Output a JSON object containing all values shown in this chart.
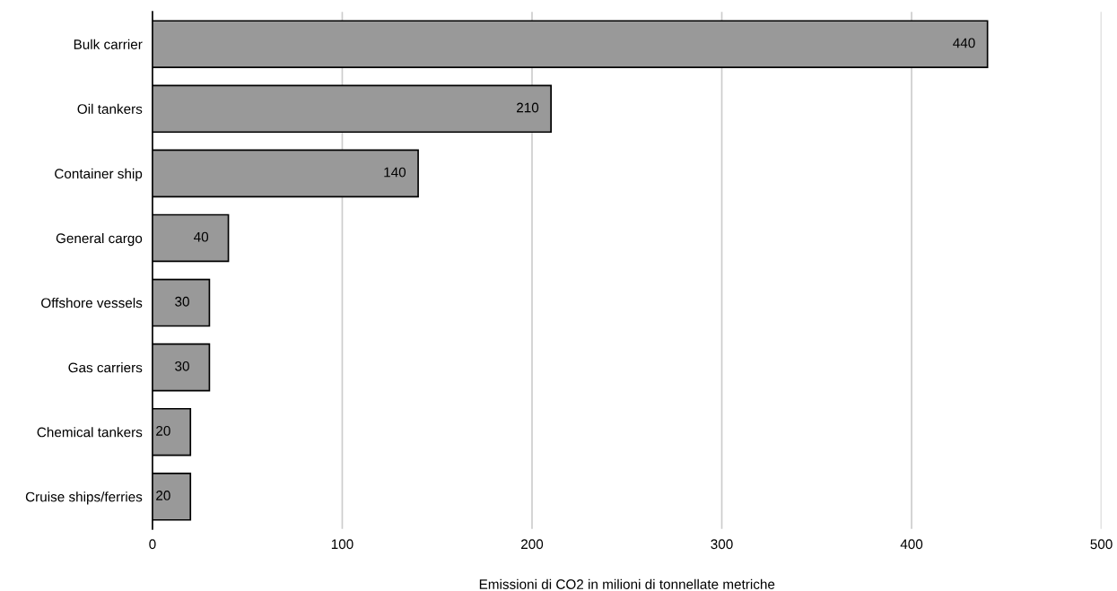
{
  "chart_data": {
    "type": "bar",
    "orientation": "horizontal",
    "xlabel": "Emissioni di CO2 in milioni di tonnellate metriche",
    "categories": [
      "Bulk carrier",
      "Oil tankers",
      "Container ship",
      "General cargo",
      "Offshore vessels",
      "Gas carriers",
      "Chemical tankers",
      "Cruise ships/ferries"
    ],
    "values": [
      440,
      210,
      140,
      40,
      30,
      30,
      20,
      20
    ],
    "color": "#999999",
    "xlim": [
      0,
      500
    ],
    "xticks": [
      0,
      100,
      200,
      300,
      400,
      500
    ],
    "grid": "x",
    "data_labels": true
  }
}
